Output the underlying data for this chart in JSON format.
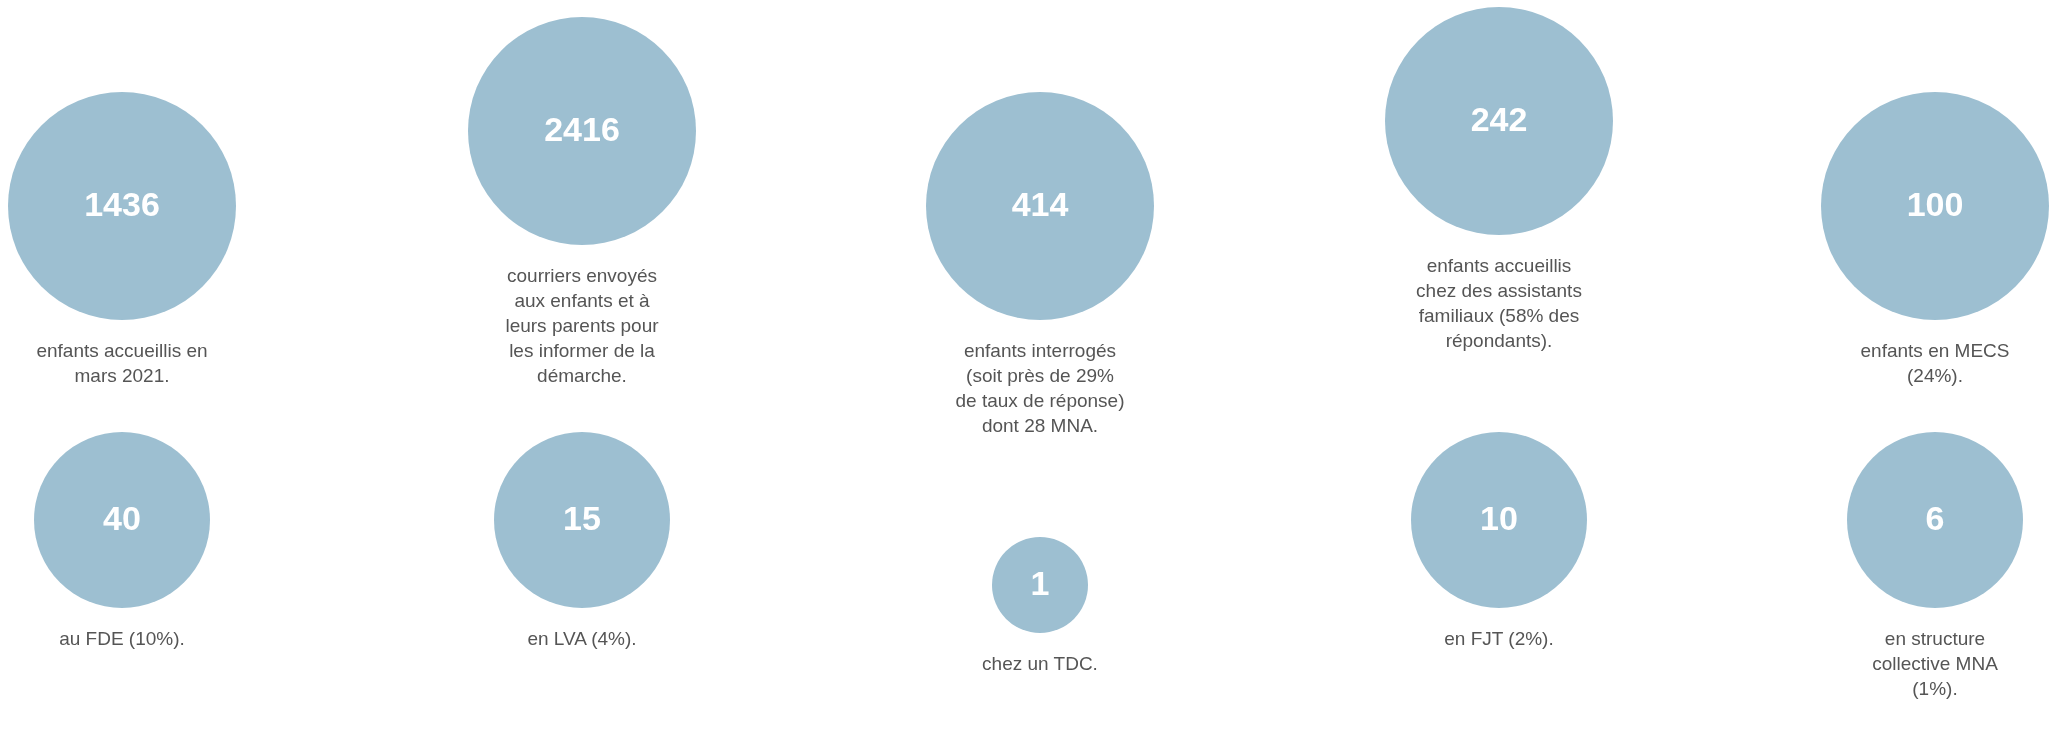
{
  "chart_data": {
    "type": "other",
    "values": [
      1436,
      2416,
      414,
      242,
      100,
      40,
      15,
      1,
      10,
      6
    ],
    "categories": [
      "enfants accueillis en mars 2021.",
      "courriers envoyés aux enfants et à leurs parents pour les informer de la démarche.",
      "enfants interrogés (soit près de 29% de taux de réponse) dont 28 MNA.",
      "enfants accueillis chez des assistants familiaux (58% des répondants).",
      "enfants en MECS (24%).",
      "au FDE (10%).",
      "en LVA (4%).",
      "chez un TDC.",
      "en FJT (2%).",
      "en structure collective MNA (1%)."
    ],
    "color": "#9dbfd1",
    "data_labels": true
  }
}
